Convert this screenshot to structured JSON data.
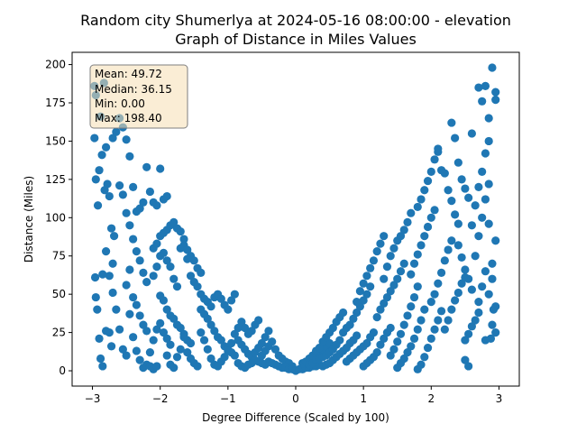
{
  "chart_data": {
    "type": "scatter",
    "title_line1": "Random city Shumerlya at 2024-05-16 08:00:00  - elevation",
    "title_line2": "Graph of Distance in Miles Values",
    "xlabel": "Degree Difference (Scaled by 100)",
    "ylabel": "Distance (Miles)",
    "xlim": [
      -3.3,
      3.3
    ],
    "ylim": [
      -10,
      208
    ],
    "xticks": [
      -3,
      -2,
      -1,
      0,
      1,
      2,
      3
    ],
    "yticks": [
      0,
      25,
      50,
      75,
      100,
      125,
      150,
      175,
      200
    ],
    "marker_color": "#1f77b4",
    "stats_box": {
      "mean": "Mean: 49.72",
      "median": "Median: 36.15",
      "min": "Min: 0.00",
      "max": "Max: 198.40",
      "background": "#f5deb3"
    },
    "points": [
      [
        -2.97,
        152
      ],
      [
        -2.95,
        125
      ],
      [
        -2.92,
        108
      ],
      [
        -2.96,
        61
      ],
      [
        -2.95,
        48
      ],
      [
        -2.93,
        40
      ],
      [
        -2.9,
        21
      ],
      [
        -2.88,
        8
      ],
      [
        -2.85,
        3
      ],
      [
        -2.97,
        186
      ],
      [
        -2.95,
        180
      ],
      [
        -2.88,
        166
      ],
      [
        -2.83,
        188
      ],
      [
        -2.86,
        141
      ],
      [
        -2.9,
        131
      ],
      [
        -2.82,
        118
      ],
      [
        -2.8,
        146
      ],
      [
        -2.78,
        122
      ],
      [
        -2.75,
        114
      ],
      [
        -2.72,
        93
      ],
      [
        -2.7,
        70
      ],
      [
        -2.68,
        88
      ],
      [
        -2.75,
        62
      ],
      [
        -2.8,
        78
      ],
      [
        -2.85,
        63
      ],
      [
        -2.7,
        51
      ],
      [
        -2.65,
        40
      ],
      [
        -2.6,
        27
      ],
      [
        -2.55,
        14
      ],
      [
        -2.5,
        10
      ],
      [
        -2.75,
        25
      ],
      [
        -2.8,
        26
      ],
      [
        -2.72,
        16
      ],
      [
        -2.7,
        152
      ],
      [
        -2.65,
        156
      ],
      [
        -2.6,
        165
      ],
      [
        -2.55,
        159
      ],
      [
        -2.5,
        151
      ],
      [
        -2.45,
        140
      ],
      [
        -2.6,
        121
      ],
      [
        -2.55,
        115
      ],
      [
        -2.5,
        103
      ],
      [
        -2.45,
        95
      ],
      [
        -2.4,
        120
      ],
      [
        -2.35,
        104
      ],
      [
        -2.3,
        106
      ],
      [
        -2.25,
        110
      ],
      [
        -2.4,
        86
      ],
      [
        -2.35,
        78
      ],
      [
        -2.3,
        72
      ],
      [
        -2.25,
        64
      ],
      [
        -2.2,
        58
      ],
      [
        -2.45,
        66
      ],
      [
        -2.5,
        56
      ],
      [
        -2.4,
        48
      ],
      [
        -2.35,
        43
      ],
      [
        -2.3,
        36
      ],
      [
        -2.25,
        30
      ],
      [
        -2.2,
        26
      ],
      [
        -2.45,
        37
      ],
      [
        -2.4,
        22
      ],
      [
        -2.35,
        13
      ],
      [
        -2.3,
        7
      ],
      [
        -2.25,
        2
      ],
      [
        -2.2,
        4
      ],
      [
        -2.15,
        3
      ],
      [
        -2.1,
        1
      ],
      [
        -2.05,
        3
      ],
      [
        -2.15,
        12
      ],
      [
        -2.1,
        20
      ],
      [
        -2.05,
        27
      ],
      [
        -2.0,
        31
      ],
      [
        -1.95,
        25
      ],
      [
        -1.9,
        21
      ],
      [
        -1.85,
        17
      ],
      [
        -2.2,
        133
      ],
      [
        -2.15,
        117
      ],
      [
        -2.1,
        110
      ],
      [
        -2.05,
        108
      ],
      [
        -2.0,
        132
      ],
      [
        -1.95,
        112
      ],
      [
        -1.9,
        114
      ],
      [
        -2.1,
        80
      ],
      [
        -2.05,
        83
      ],
      [
        -2.0,
        88
      ],
      [
        -1.95,
        90
      ],
      [
        -1.9,
        92
      ],
      [
        -1.85,
        95
      ],
      [
        -1.8,
        97
      ],
      [
        -1.75,
        93
      ],
      [
        -2.1,
        62
      ],
      [
        -2.05,
        68
      ],
      [
        -2.0,
        75
      ],
      [
        -1.95,
        77
      ],
      [
        -1.9,
        72
      ],
      [
        -1.85,
        68
      ],
      [
        -1.8,
        60
      ],
      [
        -1.75,
        55
      ],
      [
        -2.0,
        49
      ],
      [
        -1.95,
        46
      ],
      [
        -1.9,
        40
      ],
      [
        -1.85,
        36
      ],
      [
        -1.8,
        34
      ],
      [
        -1.75,
        30
      ],
      [
        -1.7,
        28
      ],
      [
        -1.65,
        24
      ],
      [
        -1.6,
        20
      ],
      [
        -1.55,
        18
      ],
      [
        -1.9,
        10
      ],
      [
        -1.85,
        4
      ],
      [
        -1.8,
        2
      ],
      [
        -1.75,
        9
      ],
      [
        -1.7,
        14
      ],
      [
        -1.65,
        22
      ],
      [
        -1.6,
        12
      ],
      [
        -1.55,
        8
      ],
      [
        -1.5,
        5
      ],
      [
        -1.45,
        3
      ],
      [
        -1.7,
        80
      ],
      [
        -1.65,
        82
      ],
      [
        -1.6,
        79
      ],
      [
        -1.55,
        75
      ],
      [
        -1.5,
        72
      ],
      [
        -1.45,
        67
      ],
      [
        -1.4,
        64
      ],
      [
        -1.7,
        91
      ],
      [
        -1.65,
        86
      ],
      [
        -1.6,
        73
      ],
      [
        -1.55,
        62
      ],
      [
        -1.5,
        58
      ],
      [
        -1.45,
        55
      ],
      [
        -1.4,
        50
      ],
      [
        -1.35,
        47
      ],
      [
        -1.3,
        45
      ],
      [
        -1.25,
        42
      ],
      [
        -1.2,
        48
      ],
      [
        -1.15,
        50
      ],
      [
        -1.1,
        47
      ],
      [
        -1.05,
        43
      ],
      [
        -1.0,
        40
      ],
      [
        -0.95,
        46
      ],
      [
        -0.9,
        50
      ],
      [
        -1.4,
        40
      ],
      [
        -1.35,
        37
      ],
      [
        -1.3,
        34
      ],
      [
        -1.25,
        30
      ],
      [
        -1.2,
        26
      ],
      [
        -1.15,
        22
      ],
      [
        -1.1,
        20
      ],
      [
        -1.05,
        16
      ],
      [
        -1.0,
        14
      ],
      [
        -0.95,
        12
      ],
      [
        -0.9,
        10
      ],
      [
        -1.4,
        25
      ],
      [
        -1.35,
        20
      ],
      [
        -1.3,
        14
      ],
      [
        -1.25,
        8
      ],
      [
        -1.2,
        4
      ],
      [
        -1.15,
        3
      ],
      [
        -1.1,
        6
      ],
      [
        -1.05,
        9
      ],
      [
        -1.0,
        13
      ],
      [
        -0.95,
        18
      ],
      [
        -0.9,
        24
      ],
      [
        -0.85,
        28
      ],
      [
        -0.8,
        32
      ],
      [
        -0.75,
        28
      ],
      [
        -0.7,
        24
      ],
      [
        -0.65,
        26
      ],
      [
        -0.6,
        30
      ],
      [
        -0.55,
        33
      ],
      [
        -0.85,
        20
      ],
      [
        -0.8,
        17
      ],
      [
        -0.75,
        14
      ],
      [
        -0.7,
        11
      ],
      [
        -0.65,
        9
      ],
      [
        -0.6,
        7
      ],
      [
        -0.55,
        6
      ],
      [
        -0.5,
        5
      ],
      [
        -0.45,
        4
      ],
      [
        -0.85,
        5
      ],
      [
        -0.8,
        3
      ],
      [
        -0.75,
        2
      ],
      [
        -0.7,
        4
      ],
      [
        -0.65,
        5
      ],
      [
        -0.6,
        12
      ],
      [
        -0.55,
        15
      ],
      [
        -0.5,
        18
      ],
      [
        -0.45,
        22
      ],
      [
        -0.4,
        26
      ],
      [
        -0.5,
        10
      ],
      [
        -0.45,
        13
      ],
      [
        -0.4,
        16
      ],
      [
        -0.35,
        19
      ],
      [
        -0.3,
        14
      ],
      [
        -0.25,
        10
      ],
      [
        -0.2,
        8
      ],
      [
        -0.15,
        6
      ],
      [
        -0.1,
        5
      ],
      [
        -0.05,
        3
      ],
      [
        -0.4,
        6
      ],
      [
        -0.35,
        5
      ],
      [
        -0.3,
        4
      ],
      [
        -0.25,
        3
      ],
      [
        -0.2,
        2
      ],
      [
        -0.15,
        2
      ],
      [
        -0.1,
        1
      ],
      [
        -0.05,
        1
      ],
      [
        0.0,
        0
      ],
      [
        0.05,
        1
      ],
      [
        0.1,
        1
      ],
      [
        0.15,
        2
      ],
      [
        0.2,
        2
      ],
      [
        0.25,
        3
      ],
      [
        0.3,
        3
      ],
      [
        0.35,
        4
      ],
      [
        0.1,
        5
      ],
      [
        0.15,
        6
      ],
      [
        0.2,
        8
      ],
      [
        0.25,
        10
      ],
      [
        0.3,
        11
      ],
      [
        0.35,
        12
      ],
      [
        0.4,
        14
      ],
      [
        0.45,
        16
      ],
      [
        0.5,
        18
      ],
      [
        0.2,
        4
      ],
      [
        0.25,
        5
      ],
      [
        0.3,
        7
      ],
      [
        0.35,
        8
      ],
      [
        0.4,
        9
      ],
      [
        0.45,
        10
      ],
      [
        0.5,
        12
      ],
      [
        0.55,
        14
      ],
      [
        0.6,
        17
      ],
      [
        0.65,
        20
      ],
      [
        0.3,
        13
      ],
      [
        0.35,
        15
      ],
      [
        0.4,
        19
      ],
      [
        0.45,
        22
      ],
      [
        0.5,
        25
      ],
      [
        0.55,
        28
      ],
      [
        0.6,
        32
      ],
      [
        0.65,
        35
      ],
      [
        0.7,
        38
      ],
      [
        0.4,
        3
      ],
      [
        0.45,
        4
      ],
      [
        0.5,
        5
      ],
      [
        0.55,
        7
      ],
      [
        0.6,
        9
      ],
      [
        0.65,
        11
      ],
      [
        0.7,
        13
      ],
      [
        0.75,
        15
      ],
      [
        0.8,
        18
      ],
      [
        0.85,
        20
      ],
      [
        0.9,
        23
      ],
      [
        0.7,
        25
      ],
      [
        0.75,
        28
      ],
      [
        0.8,
        30
      ],
      [
        0.85,
        34
      ],
      [
        0.9,
        38
      ],
      [
        0.95,
        42
      ],
      [
        1.0,
        46
      ],
      [
        1.05,
        50
      ],
      [
        1.1,
        55
      ],
      [
        0.75,
        6
      ],
      [
        0.8,
        8
      ],
      [
        0.85,
        10
      ],
      [
        0.9,
        12
      ],
      [
        0.95,
        14
      ],
      [
        1.0,
        16
      ],
      [
        1.05,
        18
      ],
      [
        1.1,
        22
      ],
      [
        1.15,
        25
      ],
      [
        0.9,
        45
      ],
      [
        0.95,
        52
      ],
      [
        1.0,
        57
      ],
      [
        1.05,
        62
      ],
      [
        1.1,
        67
      ],
      [
        1.15,
        72
      ],
      [
        1.2,
        78
      ],
      [
        1.25,
        83
      ],
      [
        1.3,
        88
      ],
      [
        1.0,
        3
      ],
      [
        1.05,
        5
      ],
      [
        1.1,
        7
      ],
      [
        1.15,
        9
      ],
      [
        1.2,
        12
      ],
      [
        1.25,
        17
      ],
      [
        1.3,
        21
      ],
      [
        1.35,
        25
      ],
      [
        1.4,
        28
      ],
      [
        1.2,
        35
      ],
      [
        1.25,
        40
      ],
      [
        1.3,
        44
      ],
      [
        1.35,
        48
      ],
      [
        1.4,
        52
      ],
      [
        1.45,
        56
      ],
      [
        1.5,
        60
      ],
      [
        1.55,
        65
      ],
      [
        1.6,
        70
      ],
      [
        1.3,
        60
      ],
      [
        1.35,
        68
      ],
      [
        1.4,
        75
      ],
      [
        1.45,
        80
      ],
      [
        1.5,
        85
      ],
      [
        1.55,
        88
      ],
      [
        1.6,
        92
      ],
      [
        1.65,
        97
      ],
      [
        1.7,
        103
      ],
      [
        1.4,
        10
      ],
      [
        1.45,
        14
      ],
      [
        1.5,
        19
      ],
      [
        1.55,
        24
      ],
      [
        1.6,
        30
      ],
      [
        1.65,
        36
      ],
      [
        1.7,
        42
      ],
      [
        1.75,
        48
      ],
      [
        1.8,
        55
      ],
      [
        1.5,
        2
      ],
      [
        1.55,
        5
      ],
      [
        1.6,
        8
      ],
      [
        1.65,
        12
      ],
      [
        1.7,
        16
      ],
      [
        1.75,
        21
      ],
      [
        1.8,
        27
      ],
      [
        1.85,
        33
      ],
      [
        1.9,
        40
      ],
      [
        1.7,
        63
      ],
      [
        1.75,
        70
      ],
      [
        1.8,
        76
      ],
      [
        1.85,
        82
      ],
      [
        1.9,
        88
      ],
      [
        1.95,
        94
      ],
      [
        2.0,
        100
      ],
      [
        2.05,
        105
      ],
      [
        1.8,
        107
      ],
      [
        1.85,
        112
      ],
      [
        1.9,
        118
      ],
      [
        1.95,
        124
      ],
      [
        2.0,
        130
      ],
      [
        2.05,
        138
      ],
      [
        2.1,
        143
      ],
      [
        1.8,
        1
      ],
      [
        1.85,
        4
      ],
      [
        1.9,
        9
      ],
      [
        1.95,
        15
      ],
      [
        2.0,
        21
      ],
      [
        2.05,
        27
      ],
      [
        2.1,
        33
      ],
      [
        2.15,
        39
      ],
      [
        2.0,
        45
      ],
      [
        2.05,
        50
      ],
      [
        2.1,
        57
      ],
      [
        2.15,
        64
      ],
      [
        2.2,
        72
      ],
      [
        2.25,
        79
      ],
      [
        2.3,
        85
      ],
      [
        2.1,
        145
      ],
      [
        2.15,
        131
      ],
      [
        2.2,
        129
      ],
      [
        2.25,
        118
      ],
      [
        2.3,
        111
      ],
      [
        2.35,
        102
      ],
      [
        2.4,
        96
      ],
      [
        2.2,
        27
      ],
      [
        2.25,
        33
      ],
      [
        2.3,
        40
      ],
      [
        2.35,
        46
      ],
      [
        2.4,
        51
      ],
      [
        2.45,
        57
      ],
      [
        2.5,
        61
      ],
      [
        2.3,
        162
      ],
      [
        2.35,
        152
      ],
      [
        2.4,
        136
      ],
      [
        2.45,
        125
      ],
      [
        2.5,
        119
      ],
      [
        2.55,
        113
      ],
      [
        2.4,
        82
      ],
      [
        2.45,
        74
      ],
      [
        2.5,
        66
      ],
      [
        2.55,
        60
      ],
      [
        2.6,
        53
      ],
      [
        2.5,
        20
      ],
      [
        2.55,
        24
      ],
      [
        2.6,
        29
      ],
      [
        2.65,
        33
      ],
      [
        2.7,
        38
      ],
      [
        2.5,
        7
      ],
      [
        2.55,
        3
      ],
      [
        2.6,
        95
      ],
      [
        2.65,
        108
      ],
      [
        2.7,
        120
      ],
      [
        2.75,
        130
      ],
      [
        2.8,
        142
      ],
      [
        2.85,
        150
      ],
      [
        2.7,
        185
      ],
      [
        2.75,
        176
      ],
      [
        2.8,
        186
      ],
      [
        2.85,
        165
      ],
      [
        2.9,
        198
      ],
      [
        2.95,
        182
      ],
      [
        2.95,
        177
      ],
      [
        2.65,
        75
      ],
      [
        2.7,
        88
      ],
      [
        2.75,
        100
      ],
      [
        2.8,
        112
      ],
      [
        2.85,
        122
      ],
      [
        2.9,
        70
      ],
      [
        2.95,
        85
      ],
      [
        2.6,
        155
      ],
      [
        2.7,
        45
      ],
      [
        2.75,
        55
      ],
      [
        2.8,
        65
      ],
      [
        2.85,
        50
      ],
      [
        2.9,
        30
      ],
      [
        2.95,
        25
      ],
      [
        2.88,
        21
      ],
      [
        2.92,
        40
      ],
      [
        2.8,
        20
      ],
      [
        2.85,
        96
      ],
      [
        2.9,
        60
      ],
      [
        2.95,
        42
      ]
    ]
  }
}
